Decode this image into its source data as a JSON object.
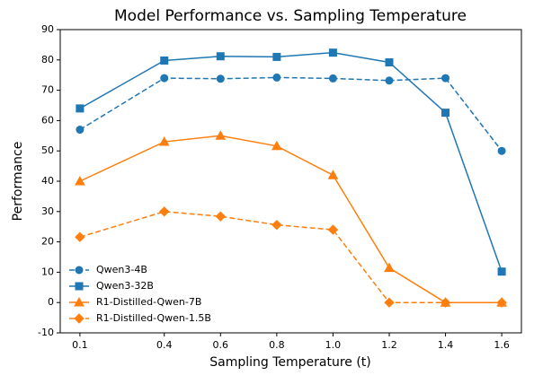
{
  "chart_data": {
    "type": "line",
    "title": "Model Performance vs. Sampling Temperature",
    "x_label": "Sampling Temperature (t)",
    "y_label": "Performance",
    "x": [
      0.1,
      0.4,
      0.6,
      0.8,
      1.0,
      1.2,
      1.4,
      1.6
    ],
    "series": [
      {
        "name": "Qwen3-4B",
        "color": "#1f77b4",
        "linestyle": "dashed",
        "marker": "circle",
        "values": [
          57,
          74,
          73.8,
          74.2,
          73.9,
          73.2,
          74,
          50
        ]
      },
      {
        "name": "Qwen3-32B",
        "color": "#1f77b4",
        "linestyle": "solid",
        "marker": "square",
        "values": [
          64,
          79.8,
          81.2,
          81,
          82.4,
          79.2,
          62.6,
          10.2
        ]
      },
      {
        "name": "R1-Distilled-Qwen-7B",
        "color": "#ff7f0e",
        "linestyle": "solid",
        "marker": "triangle",
        "values": [
          40,
          53,
          55,
          51.6,
          42,
          11.4,
          0,
          0
        ]
      },
      {
        "name": "R1-Distilled-Qwen-1.5B",
        "color": "#ff7f0e",
        "linestyle": "dashed",
        "marker": "diamond",
        "values": [
          21.6,
          30,
          28.4,
          25.6,
          24,
          0,
          0,
          0
        ]
      }
    ],
    "xlim": [
      0.03,
      1.67
    ],
    "ylim": [
      -10,
      90
    ],
    "xticks": [
      0.1,
      0.4,
      0.6,
      0.8,
      {
        "value": 1,
        "label": "1.0"
      },
      1.2,
      1.4,
      1.6
    ],
    "yticks": [
      -10,
      0,
      10,
      20,
      30,
      40,
      50,
      60,
      70,
      80,
      90
    ],
    "grid": false,
    "legend": "lower left"
  }
}
